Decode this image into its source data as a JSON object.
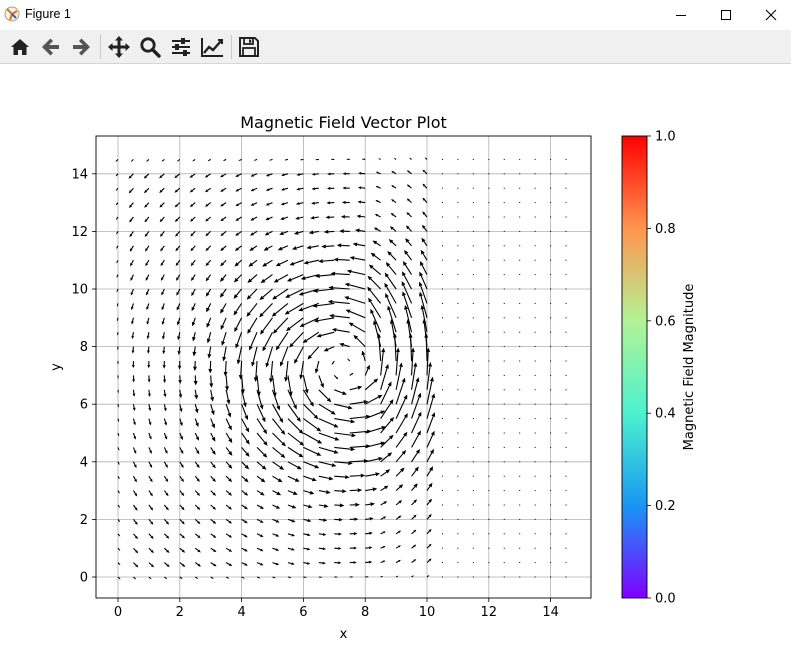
{
  "window": {
    "title": "Figure 1",
    "controls": [
      "minimize",
      "maximize",
      "close"
    ]
  },
  "toolbar": {
    "buttons": [
      {
        "name": "home",
        "icon": "home-icon"
      },
      {
        "name": "back",
        "icon": "arrow-left-icon"
      },
      {
        "name": "forward",
        "icon": "arrow-right-icon"
      },
      {
        "name": "pan",
        "icon": "move-icon"
      },
      {
        "name": "zoom",
        "icon": "magnifier-icon"
      },
      {
        "name": "subplots",
        "icon": "sliders-icon"
      },
      {
        "name": "edit-axis",
        "icon": "line-chart-icon"
      },
      {
        "name": "save",
        "icon": "floppy-disk-icon"
      }
    ]
  },
  "chart_data": {
    "type": "quiver",
    "title": "Magnetic Field Vector Plot",
    "xlabel": "x",
    "ylabel": "y",
    "xlim": [
      -0.7,
      15.2
    ],
    "ylim": [
      -0.7,
      15.3
    ],
    "xticks": [
      0,
      2,
      4,
      6,
      8,
      10,
      12,
      14
    ],
    "yticks": [
      0,
      2,
      4,
      6,
      8,
      10,
      12,
      14
    ],
    "grid": true,
    "grid_spacing": 0.5,
    "grid_range": [
      0,
      14.5
    ],
    "field_region_xmax": 10,
    "vortex_center": [
      7.3,
      7.3
    ],
    "vector_color": "#000000",
    "colorbar": {
      "label": "Magnetic Field Magnitude",
      "range": [
        0.0,
        1.0
      ],
      "ticks": [
        "0.0",
        "0.2",
        "0.4",
        "0.6",
        "0.8",
        "1.0"
      ],
      "colormap": "rainbow",
      "colors": [
        "#8000ff",
        "#1996f3",
        "#4cf2ce",
        "#b2f396",
        "#ff964f",
        "#ff0000"
      ]
    }
  }
}
